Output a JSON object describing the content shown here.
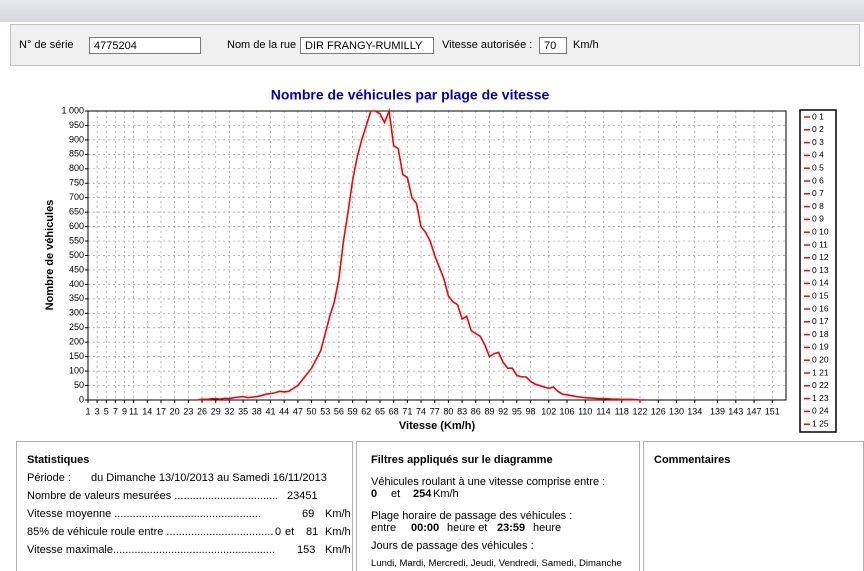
{
  "form": {
    "serial_label": "N° de série",
    "serial_value": "4775204",
    "street_label": "Nom de la rue",
    "street_value": "DIR FRANGY-RUMILLY",
    "speed_label": "Vitesse autorisée :",
    "speed_value": "70",
    "speed_unit": "Km/h"
  },
  "chart_data": {
    "type": "line",
    "title": "Nombre de véhicules par plage de vitesse",
    "x_label": "Vitesse (Km/h)",
    "y_label": "Nombre de véhicules",
    "color": "#ff0000",
    "grid": true,
    "x": [
      25,
      26,
      27,
      28,
      29,
      30,
      31,
      32,
      33,
      34,
      35,
      36,
      37,
      38,
      39,
      40,
      41,
      42,
      43,
      44,
      45,
      46,
      47,
      48,
      49,
      50,
      51,
      52,
      53,
      54,
      55,
      56,
      57,
      58,
      59,
      60,
      61,
      62,
      63,
      64,
      65,
      66,
      67,
      68,
      69,
      70,
      71,
      72,
      73,
      74,
      75,
      76,
      77,
      78,
      79,
      80,
      81,
      82,
      83,
      84,
      85,
      86,
      87,
      88,
      89,
      90,
      91,
      92,
      93,
      94,
      95,
      96,
      97,
      98,
      99,
      100,
      101,
      102,
      103,
      104,
      105,
      106,
      107,
      108,
      109,
      110,
      111,
      112,
      113,
      114,
      115,
      116,
      117,
      118,
      119,
      120,
      121,
      122,
      123
    ],
    "values": [
      0,
      3,
      2,
      4,
      5,
      3,
      6,
      5,
      8,
      10,
      12,
      8,
      10,
      12,
      15,
      20,
      22,
      25,
      30,
      28,
      30,
      40,
      50,
      70,
      90,
      110,
      140,
      170,
      230,
      290,
      340,
      420,
      550,
      650,
      760,
      840,
      900,
      950,
      1000,
      1000,
      990,
      960,
      1000,
      880,
      870,
      780,
      770,
      700,
      680,
      600,
      580,
      550,
      500,
      460,
      420,
      360,
      340,
      330,
      280,
      290,
      240,
      230,
      220,
      190,
      150,
      160,
      165,
      130,
      110,
      110,
      85,
      80,
      80,
      65,
      55,
      50,
      45,
      40,
      45,
      30,
      20,
      18,
      15,
      12,
      10,
      8,
      7,
      6,
      5,
      5,
      4,
      3,
      3,
      2,
      2,
      2,
      1,
      0,
      0
    ],
    "xlim": [
      1,
      154
    ],
    "xticks": [
      1,
      3,
      5,
      7,
      9,
      11,
      14,
      17,
      20,
      23,
      26,
      29,
      32,
      35,
      38,
      41,
      44,
      47,
      50,
      53,
      56,
      59,
      62,
      65,
      68,
      71,
      74,
      77,
      80,
      83,
      86,
      89,
      92,
      95,
      98,
      102,
      106,
      110,
      114,
      118,
      122,
      126,
      130,
      134,
      139,
      143,
      147,
      151
    ],
    "ylim": [
      0,
      1000
    ],
    "yticks": [
      0,
      50,
      100,
      150,
      200,
      250,
      300,
      350,
      400,
      450,
      500,
      550,
      600,
      650,
      700,
      750,
      800,
      850,
      900,
      950,
      {
        "value": 1000,
        "label": "1 000"
      }
    ],
    "legend_entries": [
      "0 1",
      "0 2",
      "0 3",
      "0 4",
      "0 5",
      "0 6",
      "0 7",
      "0 8",
      "0 9",
      "0 10",
      "0 11",
      "0 12",
      "0 13",
      "0 14",
      "0 15",
      "0 16",
      "0 17",
      "0 18",
      "0 19",
      "0 20",
      "1 21",
      "0 22",
      "1 23",
      "0 24",
      "1 25"
    ]
  },
  "statistics": {
    "title": "Statistiques",
    "period_label": "Période :",
    "period_value": "du Dimanche 13/10/2013 au Samedi 16/11/2013",
    "count_label": "Nombre de valeurs mesurées ..................................",
    "count_value": "23451",
    "mean_label": "Vitesse moyenne ..................................................",
    "mean_value": "69",
    "mean_unit": "Km/h",
    "p85_label": "85% de véhicule roule entre ...................................",
    "p85_low": "0",
    "p85_and": "et",
    "p85_high": "81",
    "p85_unit": "Km/h",
    "max_label": "Vitesse maximale.....................................................",
    "max_value": "153",
    "max_unit": "Km/h"
  },
  "filters": {
    "title": "Filtres appliqués sur le diagramme",
    "speed_label": "Véhicules roulant à une vitesse comprise entre :",
    "speed_low": "0",
    "speed_and": "et",
    "speed_high": "254",
    "speed_unit": "Km/h",
    "time_label": "Plage horaire de passage des véhicules :",
    "time_between": "entre",
    "time_start": "00:00",
    "time_mid": "heure et",
    "time_end": "23:59",
    "time_unit": "heure",
    "days_label": "Jours de passage des véhicules :",
    "days_value": "Lundi, Mardi, Mercredi, Jeudi, Vendredi, Samedi, Dimanche"
  },
  "comments": {
    "title": "Commentaires"
  }
}
